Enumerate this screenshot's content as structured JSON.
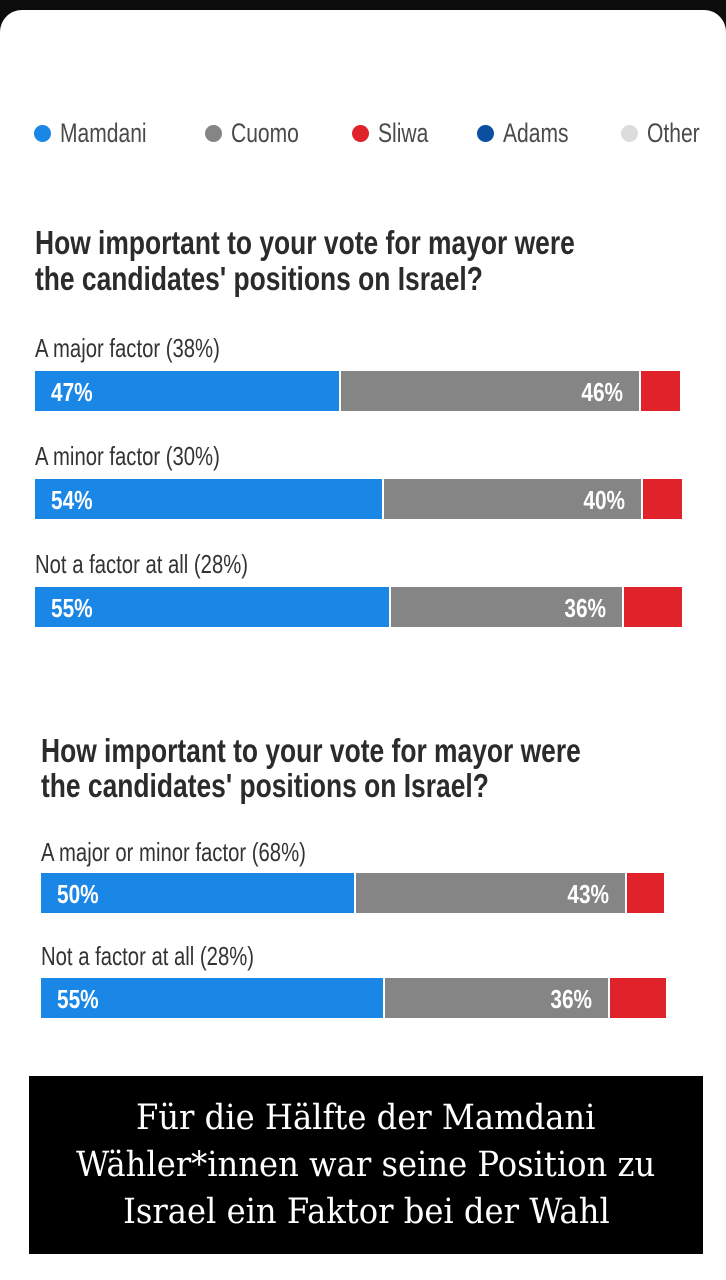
{
  "colors": {
    "mamdani": "#1a86e6",
    "cuomo": "#858585",
    "sliwa": "#e0232b",
    "adams": "#0a4fa0",
    "other": "#dcdcdc"
  },
  "legend": [
    {
      "label": "Mamdani",
      "color": "#1a86e6"
    },
    {
      "label": "Cuomo",
      "color": "#858585"
    },
    {
      "label": "Sliwa",
      "color": "#e0232b"
    },
    {
      "label": "Adams",
      "color": "#0a4fa0"
    },
    {
      "label": "Other",
      "color": "#dcdcdc"
    }
  ],
  "chart_data": [
    {
      "type": "bar",
      "orientation": "horizontal-stacked",
      "title_lines": [
        "How important to your vote for mayor were",
        "the candidates' positions on Israel?"
      ],
      "categories": [
        "A major factor (38%)",
        "A minor factor (30%)",
        "Not a factor at all (28%)"
      ],
      "series": [
        {
          "name": "Mamdani",
          "values": [
            47,
            54,
            55
          ],
          "labels": [
            "47%",
            "54%",
            "55%"
          ]
        },
        {
          "name": "Cuomo",
          "values": [
            46,
            40,
            36
          ],
          "labels": [
            "46%",
            "40%",
            "36%"
          ]
        },
        {
          "name": "Sliwa",
          "values": [
            6,
            6,
            9
          ],
          "labels": [
            "",
            "",
            ""
          ]
        }
      ],
      "xlim": [
        0,
        100
      ]
    },
    {
      "type": "bar",
      "orientation": "horizontal-stacked",
      "title_lines": [
        "How important to your vote for mayor were",
        "the candidates' positions on Israel?"
      ],
      "categories": [
        "A major or minor factor (68%)",
        "Not a factor at all (28%)"
      ],
      "series": [
        {
          "name": "Mamdani",
          "values": [
            50,
            55
          ],
          "labels": [
            "50%",
            "55%"
          ]
        },
        {
          "name": "Cuomo",
          "values": [
            43,
            36
          ],
          "labels": [
            "43%",
            "36%"
          ]
        },
        {
          "name": "Sliwa",
          "values": [
            6,
            9
          ],
          "labels": [
            "",
            ""
          ]
        }
      ],
      "xlim": [
        0,
        100
      ]
    }
  ],
  "caption": {
    "lines": [
      "Für die Hälfte der Mamdani",
      "Wähler*innen war seine Position zu",
      "Israel ein Faktor bei der Wahl"
    ]
  }
}
